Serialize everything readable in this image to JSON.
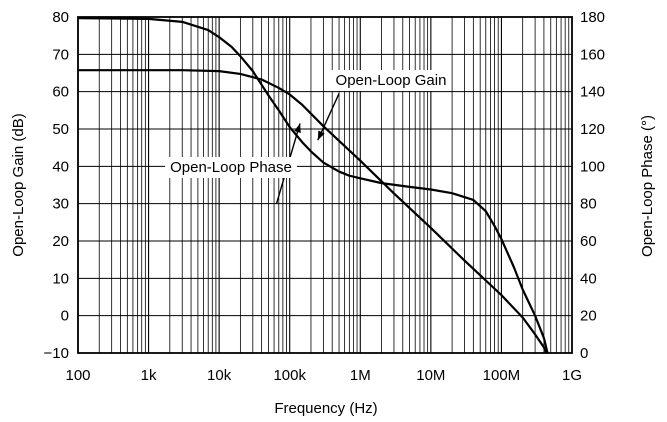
{
  "chart_data": {
    "type": "line",
    "xlabel": "Frequency (Hz)",
    "ylabel": "Open-Loop Gain (dB)",
    "y2label": "Open-Loop Phase (°)",
    "xscale": "log",
    "xlim": [
      100,
      1000000000
    ],
    "ylim": [
      -10,
      80
    ],
    "y2lim": [
      0,
      180
    ],
    "grid": true,
    "x_ticks": [
      {
        "value": 100,
        "label": "100"
      },
      {
        "value": 1000,
        "label": "1k"
      },
      {
        "value": 10000,
        "label": "10k"
      },
      {
        "value": 100000,
        "label": "100k"
      },
      {
        "value": 1000000,
        "label": "1M"
      },
      {
        "value": 10000000,
        "label": "10M"
      },
      {
        "value": 100000000,
        "label": "100M"
      },
      {
        "value": 1000000000,
        "label": "1G"
      }
    ],
    "y_ticks": [
      {
        "value": 80,
        "label": "80"
      },
      {
        "value": 70,
        "label": "70"
      },
      {
        "value": 60,
        "label": "60"
      },
      {
        "value": 50,
        "label": "50"
      },
      {
        "value": 40,
        "label": "40"
      },
      {
        "value": 30,
        "label": "30"
      },
      {
        "value": 20,
        "label": "20"
      },
      {
        "value": 10,
        "label": "10"
      },
      {
        "value": 0,
        "label": "0"
      },
      {
        "value": -10,
        "label": "−10"
      }
    ],
    "y2_ticks": [
      {
        "value": 180,
        "label": "180"
      },
      {
        "value": 160,
        "label": "160"
      },
      {
        "value": 140,
        "label": "140"
      },
      {
        "value": 120,
        "label": "120"
      },
      {
        "value": 100,
        "label": "100"
      },
      {
        "value": 80,
        "label": "80"
      },
      {
        "value": 60,
        "label": "60"
      },
      {
        "value": 40,
        "label": "40"
      },
      {
        "value": 20,
        "label": "20"
      },
      {
        "value": 0,
        "label": "0"
      }
    ],
    "series": [
      {
        "name": "Open-Loop Gain",
        "axis": "left",
        "points": [
          [
            100,
            79.7
          ],
          [
            1000,
            79.5
          ],
          [
            3000,
            78.7
          ],
          [
            7000,
            76.5
          ],
          [
            10000,
            74.6
          ],
          [
            15000,
            72
          ],
          [
            20000,
            69.5
          ],
          [
            30000,
            65.5
          ],
          [
            50000,
            59
          ],
          [
            70000,
            55
          ],
          [
            100000,
            50.5
          ],
          [
            150000,
            46.5
          ],
          [
            200000,
            44
          ],
          [
            300000,
            41
          ],
          [
            500000,
            38.6
          ],
          [
            700000,
            37.5
          ],
          [
            1000000,
            36.8
          ],
          [
            2000000,
            35.5
          ],
          [
            5000000,
            34.5
          ],
          [
            10000000,
            33.8
          ],
          [
            20000000,
            32.8
          ],
          [
            40000000,
            31
          ],
          [
            60000000,
            28
          ],
          [
            80000000,
            24
          ],
          [
            100000000,
            20.5
          ],
          [
            150000000,
            13
          ],
          [
            200000000,
            7
          ],
          [
            300000000,
            0
          ],
          [
            400000000,
            -6
          ],
          [
            450000000,
            -10
          ]
        ]
      },
      {
        "name": "Open-Loop Phase",
        "axis": "right",
        "points": [
          [
            100,
            151.5
          ],
          [
            3000,
            151.5
          ],
          [
            10000,
            151
          ],
          [
            20000,
            149.5
          ],
          [
            40000,
            146.5
          ],
          [
            70000,
            142
          ],
          [
            100000,
            138.5
          ],
          [
            150000,
            133
          ],
          [
            300000,
            121.5
          ],
          [
            1000000,
            103
          ],
          [
            3000000,
            85.5
          ],
          [
            10000000,
            67
          ],
          [
            30000000,
            49.5
          ],
          [
            100000000,
            31
          ],
          [
            200000000,
            19
          ],
          [
            300000000,
            10
          ],
          [
            400000000,
            3
          ],
          [
            430000000,
            0
          ]
        ]
      }
    ],
    "annotations": [
      {
        "text": "Open-Loop Gain",
        "target_series": "Open-Loop Gain"
      },
      {
        "text": "Open-Loop Phase",
        "target_series": "Open-Loop Gain"
      }
    ]
  }
}
